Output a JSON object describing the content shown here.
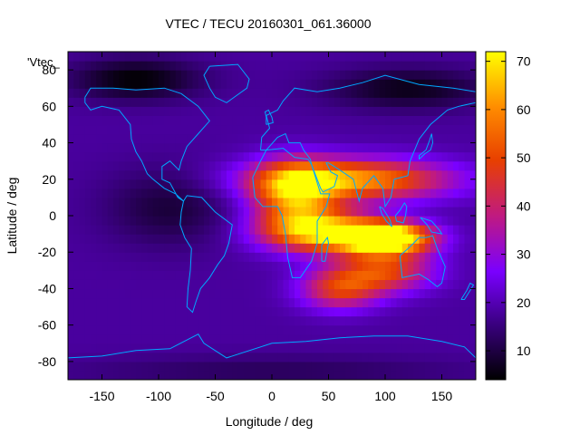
{
  "chart_data": {
    "type": "heatmap",
    "title": "VTEC / TECU 20160301_061.36000",
    "xlabel": "Longitude / deg",
    "ylabel": "Latitude / deg",
    "corner_label": "'Vtec_",
    "xlim": [
      -180,
      180
    ],
    "ylim": [
      -90,
      90
    ],
    "x_ticks": [
      -150,
      -100,
      -50,
      0,
      50,
      100,
      150
    ],
    "y_ticks": [
      -80,
      -60,
      -40,
      -20,
      0,
      20,
      40,
      60,
      80
    ],
    "colorbar": {
      "range": [
        4,
        72
      ],
      "ticks": [
        10,
        20,
        30,
        40,
        50,
        60,
        70
      ],
      "colormap": [
        "#000000",
        "#3a0080",
        "#7a00ff",
        "#c01a80",
        "#e84000",
        "#ff8c00",
        "#ffff00"
      ]
    },
    "grid": false,
    "grid_step_deg": 5,
    "background_tec": 18,
    "anomalies": [
      {
        "lon": 100,
        "lat": -12,
        "peak": 72,
        "sigma_lon": 28,
        "sigma_lat": 6
      },
      {
        "lon": 40,
        "lat": -8,
        "peak": 48,
        "sigma_lon": 35,
        "sigma_lat": 8
      },
      {
        "lon": 70,
        "lat": 20,
        "peak": 44,
        "sigma_lon": 60,
        "sigma_lat": 8
      },
      {
        "lon": 20,
        "lat": 12,
        "peak": 38,
        "sigma_lon": 25,
        "sigma_lat": 12
      },
      {
        "lon": 60,
        "lat": -40,
        "peak": 28,
        "sigma_lon": 25,
        "sigma_lat": 8
      },
      {
        "lon": 100,
        "lat": -30,
        "peak": 30,
        "sigma_lon": 30,
        "sigma_lat": 8
      },
      {
        "lon": -120,
        "lat": 75,
        "peak": -14,
        "sigma_lon": 40,
        "sigma_lat": 8
      },
      {
        "lon": -90,
        "lat": 5,
        "peak": -9,
        "sigma_lon": 40,
        "sigma_lat": 15
      },
      {
        "lon": 120,
        "lat": 70,
        "peak": -12,
        "sigma_lon": 50,
        "sigma_lat": 8
      },
      {
        "lon": 0,
        "lat": -85,
        "peak": -6,
        "sigma_lon": 120,
        "sigma_lat": 6
      }
    ],
    "coastlines": [
      {
        "name": "north-america",
        "points": [
          [
            -165,
            65
          ],
          [
            -160,
            70
          ],
          [
            -140,
            70
          ],
          [
            -120,
            69
          ],
          [
            -95,
            70
          ],
          [
            -80,
            67
          ],
          [
            -65,
            60
          ],
          [
            -55,
            52
          ],
          [
            -65,
            45
          ],
          [
            -75,
            38
          ],
          [
            -80,
            30
          ],
          [
            -82,
            25
          ],
          [
            -90,
            30
          ],
          [
            -97,
            27
          ],
          [
            -97,
            20
          ],
          [
            -90,
            18
          ],
          [
            -83,
            10
          ],
          [
            -78,
            8
          ],
          [
            -85,
            12
          ],
          [
            -95,
            15
          ],
          [
            -105,
            20
          ],
          [
            -110,
            23
          ],
          [
            -115,
            30
          ],
          [
            -120,
            35
          ],
          [
            -124,
            42
          ],
          [
            -125,
            50
          ],
          [
            -135,
            58
          ],
          [
            -150,
            60
          ],
          [
            -160,
            58
          ],
          [
            -165,
            62
          ],
          [
            -165,
            65
          ]
        ]
      },
      {
        "name": "south-america",
        "points": [
          [
            -78,
            8
          ],
          [
            -75,
            11
          ],
          [
            -62,
            10
          ],
          [
            -50,
            2
          ],
          [
            -35,
            -5
          ],
          [
            -38,
            -15
          ],
          [
            -42,
            -22
          ],
          [
            -48,
            -27
          ],
          [
            -55,
            -34
          ],
          [
            -63,
            -40
          ],
          [
            -67,
            -47
          ],
          [
            -70,
            -53
          ],
          [
            -75,
            -50
          ],
          [
            -74,
            -40
          ],
          [
            -72,
            -30
          ],
          [
            -71,
            -18
          ],
          [
            -77,
            -12
          ],
          [
            -81,
            -5
          ],
          [
            -80,
            2
          ],
          [
            -78,
            8
          ]
        ]
      },
      {
        "name": "greenland",
        "points": [
          [
            -55,
            82
          ],
          [
            -30,
            83
          ],
          [
            -20,
            75
          ],
          [
            -22,
            70
          ],
          [
            -40,
            62
          ],
          [
            -50,
            65
          ],
          [
            -55,
            70
          ],
          [
            -60,
            77
          ],
          [
            -55,
            82
          ]
        ]
      },
      {
        "name": "africa",
        "points": [
          [
            -17,
            21
          ],
          [
            -10,
            30
          ],
          [
            -5,
            36
          ],
          [
            10,
            37
          ],
          [
            20,
            32
          ],
          [
            32,
            31
          ],
          [
            35,
            28
          ],
          [
            43,
            12
          ],
          [
            51,
            12
          ],
          [
            48,
            5
          ],
          [
            40,
            -3
          ],
          [
            40,
            -15
          ],
          [
            35,
            -25
          ],
          [
            25,
            -34
          ],
          [
            18,
            -34
          ],
          [
            14,
            -23
          ],
          [
            12,
            -10
          ],
          [
            9,
            0
          ],
          [
            5,
            5
          ],
          [
            -8,
            5
          ],
          [
            -15,
            10
          ],
          [
            -17,
            21
          ]
        ]
      },
      {
        "name": "eurasia",
        "points": [
          [
            -10,
            36
          ],
          [
            -9,
            43
          ],
          [
            -2,
            48
          ],
          [
            -5,
            55
          ],
          [
            5,
            58
          ],
          [
            10,
            63
          ],
          [
            20,
            70
          ],
          [
            40,
            68
          ],
          [
            60,
            70
          ],
          [
            80,
            73
          ],
          [
            100,
            77
          ],
          [
            130,
            72
          ],
          [
            160,
            70
          ],
          [
            180,
            68
          ],
          [
            180,
            62
          ],
          [
            165,
            60
          ],
          [
            155,
            58
          ],
          [
            140,
            50
          ],
          [
            130,
            42
          ],
          [
            122,
            30
          ],
          [
            120,
            22
          ],
          [
            108,
            20
          ],
          [
            105,
            10
          ],
          [
            100,
            5
          ],
          [
            98,
            15
          ],
          [
            90,
            22
          ],
          [
            80,
            15
          ],
          [
            77,
            8
          ],
          [
            72,
            20
          ],
          [
            60,
            25
          ],
          [
            55,
            27
          ],
          [
            50,
            29
          ],
          [
            48,
            29
          ],
          [
            52,
            24
          ],
          [
            58,
            22
          ],
          [
            55,
            16
          ],
          [
            45,
            13
          ],
          [
            43,
            15
          ],
          [
            35,
            28
          ],
          [
            34,
            31
          ],
          [
            28,
            36
          ],
          [
            25,
            40
          ],
          [
            15,
            40
          ],
          [
            12,
            45
          ],
          [
            5,
            43
          ],
          [
            -5,
            36
          ],
          [
            -10,
            36
          ]
        ]
      },
      {
        "name": "australia",
        "points": [
          [
            113,
            -22
          ],
          [
            115,
            -34
          ],
          [
            130,
            -32
          ],
          [
            138,
            -35
          ],
          [
            146,
            -39
          ],
          [
            150,
            -37
          ],
          [
            153,
            -28
          ],
          [
            146,
            -18
          ],
          [
            142,
            -11
          ],
          [
            136,
            -12
          ],
          [
            130,
            -12
          ],
          [
            122,
            -17
          ],
          [
            113,
            -22
          ]
        ]
      },
      {
        "name": "madagascar",
        "points": [
          [
            44,
            -25
          ],
          [
            47,
            -25
          ],
          [
            50,
            -15
          ],
          [
            49,
            -12
          ],
          [
            44,
            -16
          ],
          [
            44,
            -25
          ]
        ]
      },
      {
        "name": "borneo",
        "points": [
          [
            109,
            0
          ],
          [
            113,
            3
          ],
          [
            117,
            7
          ],
          [
            119,
            5
          ],
          [
            118,
            0
          ],
          [
            116,
            -4
          ],
          [
            110,
            -3
          ],
          [
            109,
            0
          ]
        ]
      },
      {
        "name": "sumatra",
        "points": [
          [
            95,
            5
          ],
          [
            98,
            4
          ],
          [
            104,
            -2
          ],
          [
            106,
            -6
          ],
          [
            101,
            -3
          ],
          [
            97,
            1
          ],
          [
            95,
            5
          ]
        ]
      },
      {
        "name": "new-guinea",
        "points": [
          [
            131,
            -1
          ],
          [
            141,
            -3
          ],
          [
            148,
            -8
          ],
          [
            150,
            -10
          ],
          [
            141,
            -9
          ],
          [
            137,
            -5
          ],
          [
            131,
            -1
          ]
        ]
      },
      {
        "name": "japan",
        "points": [
          [
            130,
            31
          ],
          [
            135,
            34
          ],
          [
            140,
            36
          ],
          [
            142,
            40
          ],
          [
            141,
            45
          ],
          [
            139,
            41
          ],
          [
            136,
            36
          ],
          [
            130,
            33
          ],
          [
            130,
            31
          ]
        ]
      },
      {
        "name": "uk",
        "points": [
          [
            -5,
            50
          ],
          [
            1,
            51
          ],
          [
            0,
            54
          ],
          [
            -3,
            58
          ],
          [
            -6,
            57
          ],
          [
            -5,
            54
          ],
          [
            -5,
            50
          ]
        ]
      },
      {
        "name": "new-zealand",
        "points": [
          [
            167,
            -46
          ],
          [
            172,
            -41
          ],
          [
            175,
            -37
          ],
          [
            178,
            -38
          ],
          [
            174,
            -42
          ],
          [
            170,
            -46
          ],
          [
            167,
            -46
          ]
        ]
      },
      {
        "name": "antarctica",
        "points": [
          [
            -180,
            -78
          ],
          [
            -150,
            -77
          ],
          [
            -120,
            -74
          ],
          [
            -90,
            -73
          ],
          [
            -65,
            -65
          ],
          [
            -60,
            -70
          ],
          [
            -40,
            -78
          ],
          [
            0,
            -70
          ],
          [
            30,
            -69
          ],
          [
            60,
            -67
          ],
          [
            90,
            -66
          ],
          [
            120,
            -66
          ],
          [
            150,
            -69
          ],
          [
            170,
            -72
          ],
          [
            180,
            -78
          ]
        ]
      }
    ]
  }
}
